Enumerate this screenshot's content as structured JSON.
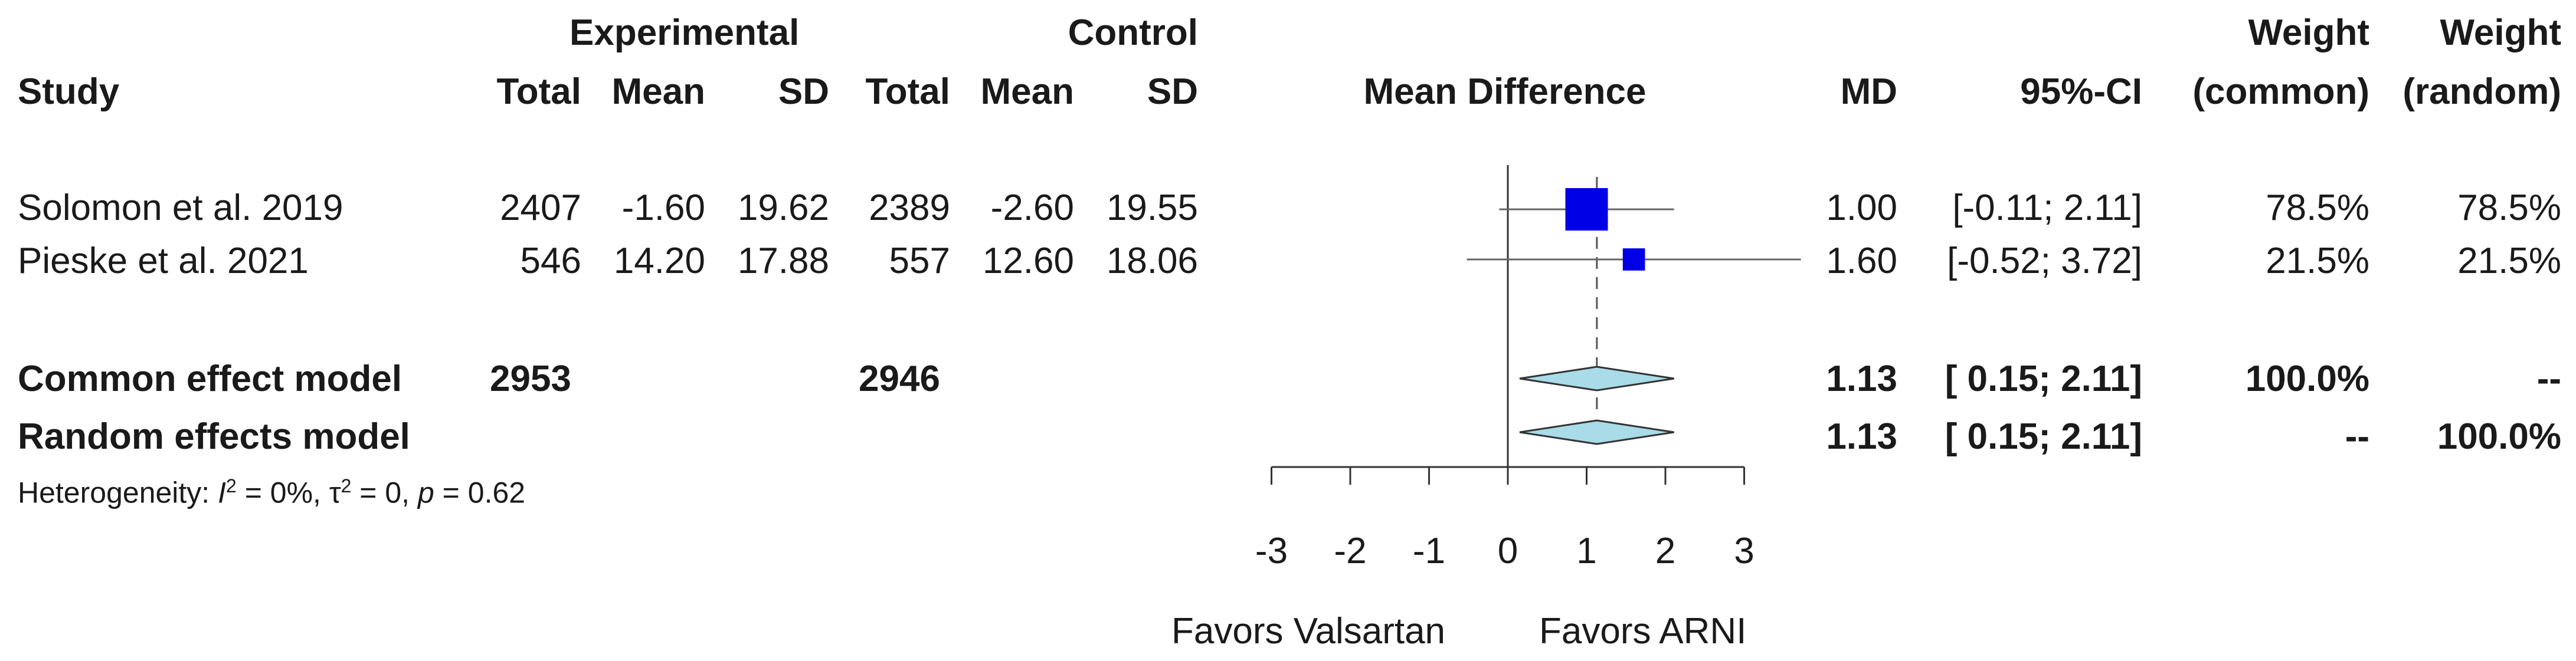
{
  "headers": {
    "experimental": "Experimental",
    "control": "Control",
    "weight1": "Weight",
    "weight2": "Weight",
    "study": "Study",
    "exp_total": "Total",
    "exp_mean": "Mean",
    "exp_sd": "SD",
    "ctl_total": "Total",
    "ctl_mean": "Mean",
    "ctl_sd": "SD",
    "mean_difference": "Mean Difference",
    "md": "MD",
    "ci": "95%-CI",
    "w_common": "(common)",
    "w_random": "(random)"
  },
  "studies": [
    {
      "study": "Solomon et al. 2019",
      "exp_total": "2407",
      "exp_mean": "-1.60",
      "exp_sd": "19.62",
      "ctl_total": "2389",
      "ctl_mean": "-2.60",
      "ctl_sd": "19.55",
      "md": "1.00",
      "ci": "[-0.11; 2.11]",
      "w_common": "78.5%",
      "w_random": "78.5%"
    },
    {
      "study": "Pieske et al. 2021",
      "exp_total": "546",
      "exp_mean": "14.20",
      "exp_sd": "17.88",
      "ctl_total": "557",
      "ctl_mean": "12.60",
      "ctl_sd": "18.06",
      "md": "1.60",
      "ci": "[-0.52; 3.72]",
      "w_common": "21.5%",
      "w_random": "21.5%"
    }
  ],
  "models": [
    {
      "label": "Common effect model",
      "exp_total": "2953",
      "ctl_total": "2946",
      "md": "1.13",
      "ci": "[ 0.15; 2.11]",
      "w_common": "100.0%",
      "w_random": "--"
    },
    {
      "label": "Random effects model",
      "exp_total": "",
      "ctl_total": "",
      "md": "1.13",
      "ci": "[ 0.15; 2.11]",
      "w_common": "--",
      "w_random": "100.0%"
    }
  ],
  "heterogeneity": {
    "prefix": "Heterogeneity: ",
    "i_symbol": "I",
    "sup2": "2",
    "i_value": " = 0%, ",
    "tau_symbol": "τ",
    "tau_value": " = 0, ",
    "p_symbol": "p",
    "p_value": " = 0.62"
  },
  "axis_labels": {
    "left": "Favors Valsartan",
    "right": "Favors ARNI"
  },
  "chart_data": {
    "type": "forest",
    "xlabel": "",
    "xlim": [
      -3,
      3
    ],
    "ticks": [
      -3,
      -2,
      -1,
      0,
      1,
      2,
      3
    ],
    "null_line": 0,
    "pooled_line": 1.13,
    "colors": {
      "square": "#0000e6",
      "diamond": "#a9dbe8",
      "line": "#333333"
    },
    "studies": [
      {
        "name": "Solomon et al. 2019",
        "md": 1.0,
        "lower": -0.11,
        "upper": 2.11,
        "weight": 78.5
      },
      {
        "name": "Pieske et al. 2021",
        "md": 1.6,
        "lower": -0.52,
        "upper": 3.72,
        "weight": 21.5
      }
    ],
    "pooled": [
      {
        "name": "Common effect model",
        "md": 1.13,
        "lower": 0.15,
        "upper": 2.11
      },
      {
        "name": "Random effects model",
        "md": 1.13,
        "lower": 0.15,
        "upper": 2.11
      }
    ]
  }
}
